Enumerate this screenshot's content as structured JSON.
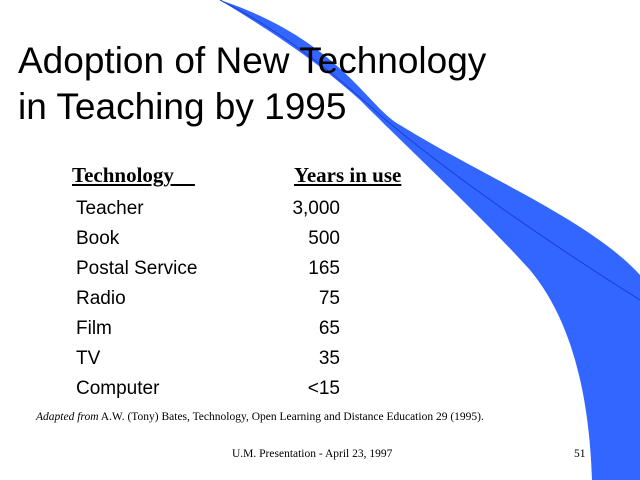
{
  "slide": {
    "title_line1": "Adoption of New Technology",
    "title_line2": "in Teaching by 1995",
    "accent_color": "#3366ff"
  },
  "table": {
    "header_technology": "Technology    ",
    "header_years": "Years in use",
    "rows": [
      {
        "technology": "Teacher",
        "years": "3,000"
      },
      {
        "technology": "Book",
        "years": "500"
      },
      {
        "technology": "Postal Service",
        "years": "165"
      },
      {
        "technology": "Radio",
        "years": "75"
      },
      {
        "technology": "Film",
        "years": "65"
      },
      {
        "technology": "TV",
        "years": "35"
      },
      {
        "technology": "Computer",
        "years": "<15"
      }
    ]
  },
  "citation": {
    "italic_part": "Adapted from",
    "rest": " A.W. (Tony) Bates, Technology, Open Learning and Distance Education 29 (1995)."
  },
  "footer": {
    "presentation": "U.M. Presentation - April 23, 1997",
    "page_number": "51"
  }
}
